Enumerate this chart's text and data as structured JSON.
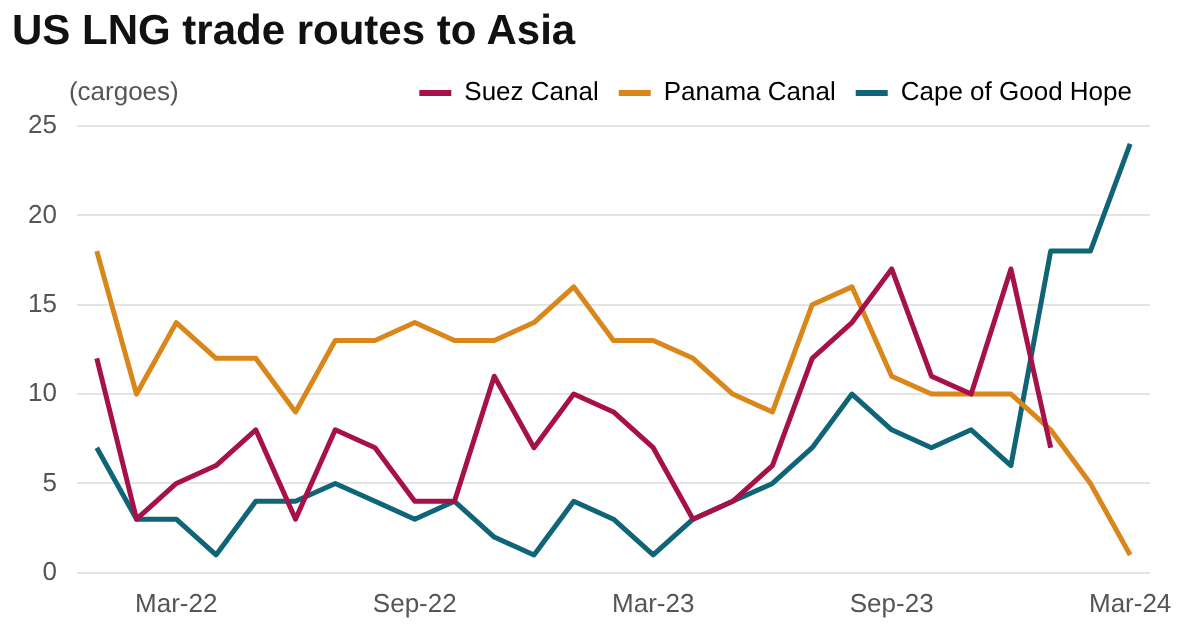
{
  "chart_data": {
    "type": "line",
    "title": "US LNG trade routes to Asia",
    "ylabel": "(cargoes)",
    "categories": [
      null,
      null,
      "Mar-22",
      null,
      null,
      null,
      null,
      null,
      "Sep-22",
      null,
      null,
      null,
      null,
      null,
      "Mar-23",
      null,
      null,
      null,
      null,
      null,
      "Sep-23",
      null,
      null,
      null,
      null,
      null,
      "Mar-24"
    ],
    "series": [
      {
        "name": "Suez Canal",
        "color": "#a6114a",
        "values": [
          12,
          3,
          5,
          6,
          8,
          3,
          8,
          7,
          4,
          4,
          11,
          7,
          10,
          9,
          7,
          3,
          4,
          6,
          12,
          14,
          17,
          11,
          10,
          17,
          7,
          null,
          null
        ]
      },
      {
        "name": "Panama Canal",
        "color": "#d9861a",
        "values": [
          18,
          10,
          14,
          12,
          12,
          9,
          13,
          13,
          14,
          13,
          13,
          14,
          16,
          13,
          13,
          12,
          10,
          9,
          15,
          16,
          11,
          10,
          10,
          10,
          8,
          5,
          1
        ]
      },
      {
        "name": "Cape of Good Hope",
        "color": "#0f6577",
        "values": [
          7,
          3,
          3,
          1,
          4,
          4,
          5,
          4,
          3,
          4,
          2,
          1,
          4,
          3,
          1,
          3,
          4,
          5,
          7,
          10,
          8,
          7,
          8,
          6,
          18,
          18,
          24
        ]
      }
    ],
    "ylim": [
      0,
      25
    ],
    "yticks": [
      0,
      5,
      10,
      15,
      20,
      25
    ],
    "grid": "y",
    "legend": "top right",
    "marker": "none",
    "line_style": "solid"
  }
}
